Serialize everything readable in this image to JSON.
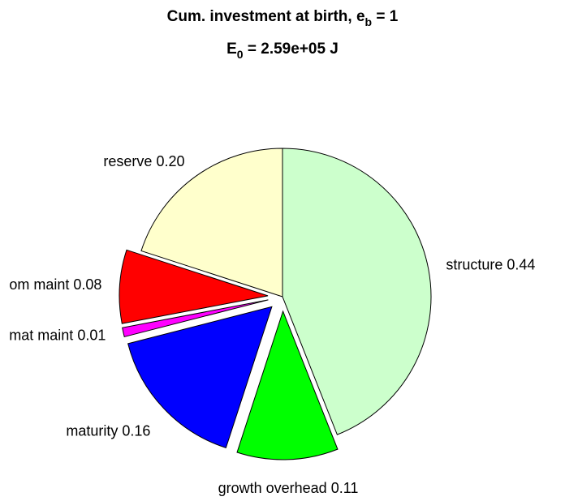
{
  "chart_data": {
    "type": "pie",
    "title": [
      "Cum. investment at birth, e",
      "b",
      " = 1"
    ],
    "subtitle": [
      "E",
      "0",
      " = 2.59e+05 J"
    ],
    "categories": [
      "structure",
      "growth overhead",
      "maturity",
      "mat maint",
      "om maint",
      "reserve"
    ],
    "values": [
      0.44,
      0.11,
      0.16,
      0.01,
      0.08,
      0.2
    ],
    "value_labels": [
      "0.44",
      "0.11",
      "0.16",
      "0.01",
      "0.08",
      "0.20"
    ],
    "colors": [
      "#ccffcc",
      "#00ff00",
      "#0000ff",
      "#ff00ff",
      "#ff0000",
      "#ffffcc"
    ],
    "explode": [
      false,
      true,
      true,
      true,
      true,
      false
    ]
  }
}
